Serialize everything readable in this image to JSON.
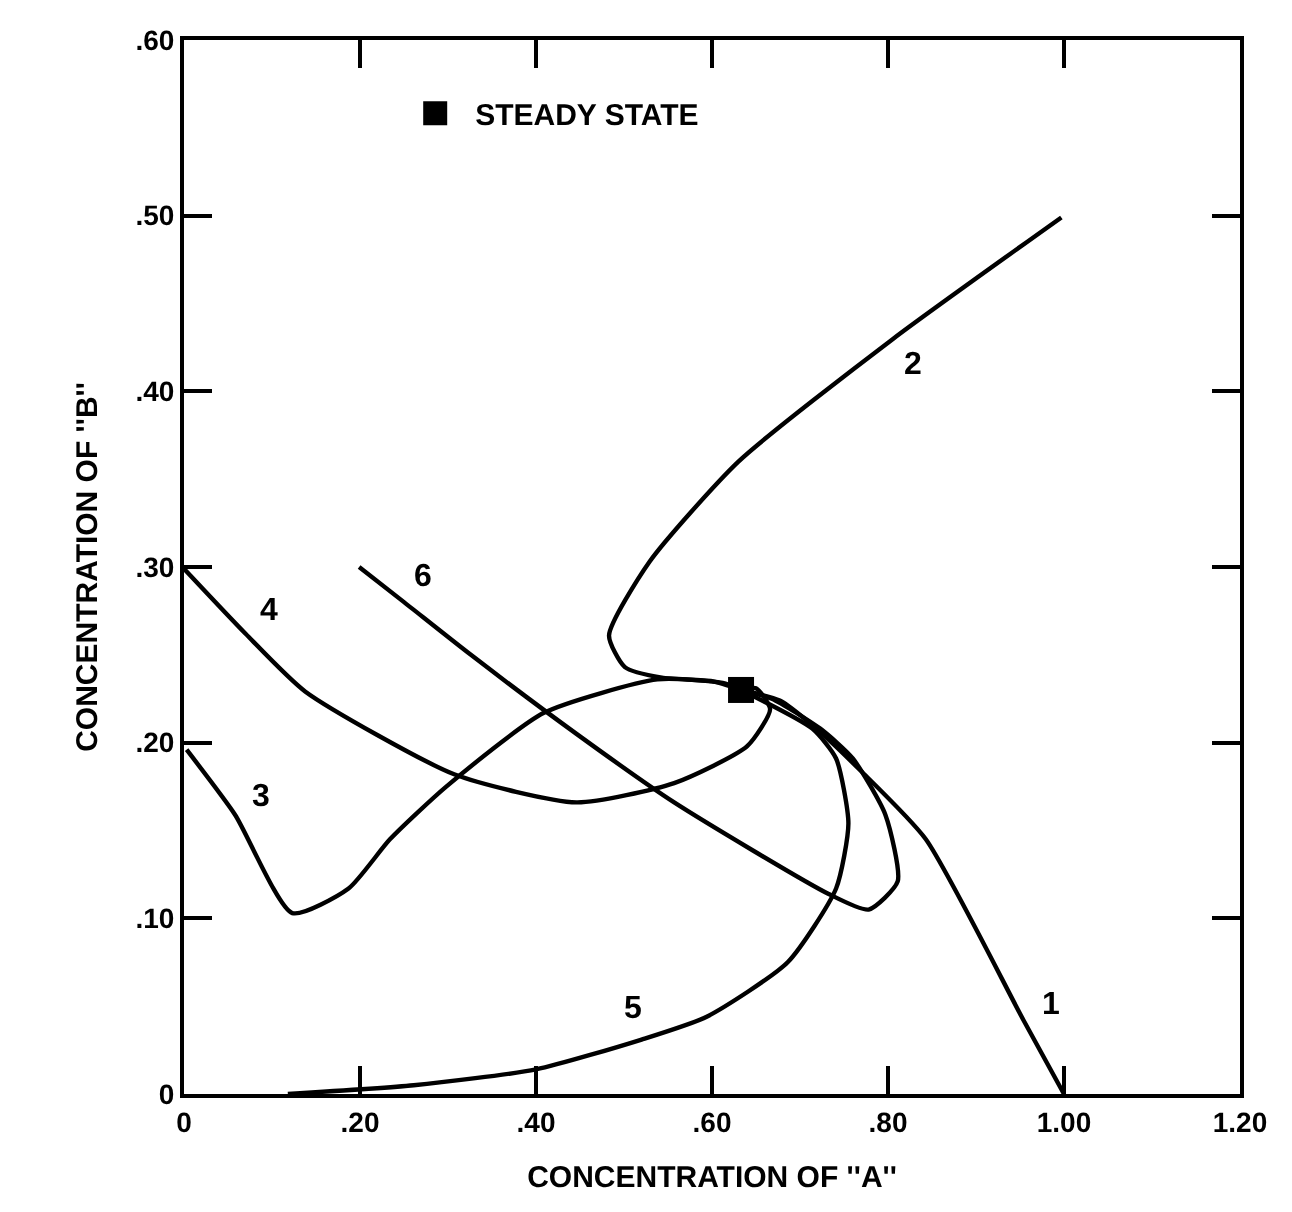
{
  "chart_data": {
    "type": "line",
    "xlabel": "CONCENTRATION OF ''A''",
    "ylabel": "CONCENTRATION OF ''B''",
    "xlim": [
      0,
      1.2
    ],
    "ylim": [
      0,
      0.6
    ],
    "xticks": [
      0,
      {
        "value": 0.2,
        "label": ".20"
      },
      {
        "value": 0.4,
        "label": ".40"
      },
      {
        "value": 0.6,
        "label": ".60"
      },
      {
        "value": 0.8,
        "label": ".80"
      },
      {
        "value": 1.0,
        "label": "1.00"
      },
      {
        "value": 1.2,
        "label": "1.20"
      }
    ],
    "yticks": [
      0,
      {
        "value": 0.1,
        "label": ".10"
      },
      {
        "value": 0.2,
        "label": ".20"
      },
      {
        "value": 0.3,
        "label": ".30"
      },
      {
        "value": 0.4,
        "label": ".40"
      },
      {
        "value": 0.5,
        "label": ".50"
      },
      {
        "value": 0.6,
        "label": ".60"
      }
    ],
    "legend": "top left",
    "line_style": "solid",
    "marker": "none",
    "series": [
      {
        "color": "#000000",
        "x": [
          1.0,
          0.954,
          0.843,
          0.769,
          0.714,
          0.677,
          0.633
        ],
        "values": [
          0.0,
          0.042,
          0.145,
          0.184,
          0.21,
          0.224,
          0.23
        ]
      },
      {
        "color": "#000000",
        "x": [
          0.997,
          0.806,
          0.63,
          0.529,
          0.483,
          0.501,
          0.543,
          0.6,
          0.633
        ],
        "values": [
          0.499,
          0.43,
          0.36,
          0.303,
          0.261,
          0.243,
          0.237,
          0.235,
          0.23
        ]
      },
      {
        "color": "#000000",
        "x": [
          0.003,
          0.058,
          0.123,
          0.187,
          0.234,
          0.298,
          0.409,
          0.538,
          0.612,
          0.633
        ],
        "values": [
          0.196,
          0.159,
          0.103,
          0.117,
          0.145,
          0.175,
          0.217,
          0.236,
          0.234,
          0.23
        ]
      },
      {
        "color": "#000000",
        "x": [
          0.0,
          0.07,
          0.138,
          0.307,
          0.446,
          0.557,
          0.64,
          0.666,
          0.65,
          0.633
        ],
        "values": [
          0.299,
          0.262,
          0.229,
          0.182,
          0.166,
          0.177,
          0.198,
          0.219,
          0.231,
          0.23
        ]
      },
      {
        "color": "#000000",
        "x": [
          0.118,
          0.261,
          0.4,
          0.52,
          0.594,
          0.686,
          0.741,
          0.755,
          0.741,
          0.714,
          0.633
        ],
        "values": [
          0.0,
          0.005,
          0.014,
          0.031,
          0.044,
          0.075,
          0.117,
          0.154,
          0.191,
          0.208,
          0.23
        ]
      },
      {
        "color": "#000000",
        "x": [
          0.199,
          0.25,
          0.326,
          0.446,
          0.557,
          0.732,
          0.778,
          0.811,
          0.797,
          0.76,
          0.723,
          0.668,
          0.633
        ],
        "values": [
          0.3,
          0.28,
          0.25,
          0.205,
          0.166,
          0.114,
          0.105,
          0.121,
          0.159,
          0.191,
          0.208,
          0.225,
          0.23
        ]
      },
      {
        "type": "scatter",
        "name": "STEADY STATE",
        "marker": "square",
        "color": "#000000",
        "x": [
          0.633
        ],
        "values": [
          0.23
        ]
      }
    ],
    "annotations": [
      {
        "text": "1",
        "x": 0.954,
        "y": 0.042
      },
      {
        "text": "2",
        "x": 0.806,
        "y": 0.43
      },
      {
        "text": "3",
        "x": 0.058,
        "y": 0.159
      },
      {
        "text": "4",
        "x": 0.07,
        "y": 0.262
      },
      {
        "text": "5",
        "x": 0.52,
        "y": 0.031
      },
      {
        "text": "6",
        "x": 0.25,
        "y": 0.28
      }
    ]
  }
}
